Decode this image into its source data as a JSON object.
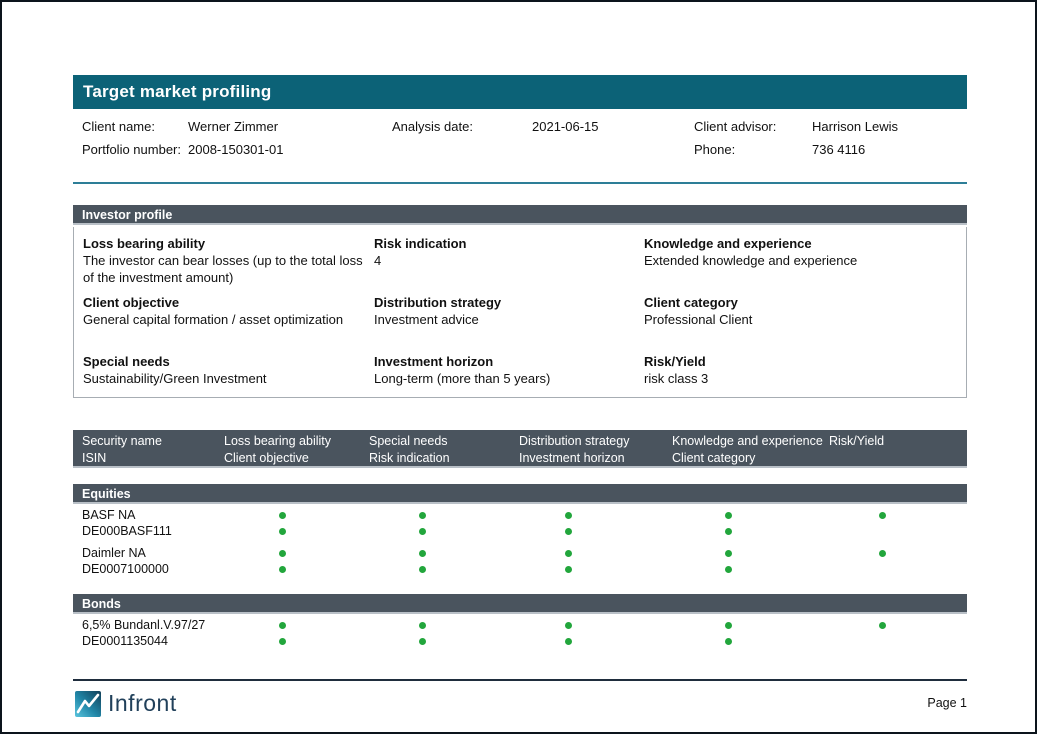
{
  "title": "Target market profiling",
  "client_info": {
    "rows": [
      [
        {
          "label": "Client name:",
          "value": "Werner Zimmer"
        },
        {
          "label": "Analysis date:",
          "value": "2021-06-15"
        },
        {
          "label": "Client advisor:",
          "value": "Harrison Lewis"
        }
      ],
      [
        {
          "label": "Portfolio number:",
          "value": "2008-150301-01"
        },
        {
          "label": "Phone:",
          "value": "736 4116"
        }
      ]
    ]
  },
  "investor_profile": {
    "header": "Investor profile",
    "fields": [
      {
        "label": "Loss bearing ability",
        "value": "The investor can bear losses (up to the total loss of the investment amount)"
      },
      {
        "label": "Risk indication",
        "value": "4"
      },
      {
        "label": "Knowledge and experience",
        "value": "Extended knowledge and experience"
      },
      {
        "label": "Client objective",
        "value": "General capital formation / asset optimization"
      },
      {
        "label": "Distribution strategy",
        "value": "Investment advice"
      },
      {
        "label": "Client category",
        "value": "Professional Client"
      },
      {
        "label": "Special needs",
        "value": "Sustainability/Green Investment"
      },
      {
        "label": "Investment horizon",
        "value": "Long-term (more than 5 years)"
      },
      {
        "label": "Risk/Yield",
        "value": "risk class 3"
      }
    ]
  },
  "table": {
    "columns": [
      {
        "line1": "Security name",
        "line2": "ISIN"
      },
      {
        "line1": "Loss bearing ability",
        "line2": "Client objective"
      },
      {
        "line1": "Special needs",
        "line2": "Risk indication"
      },
      {
        "line1": "Distribution strategy",
        "line2": "Investment horizon"
      },
      {
        "line1": "Knowledge and experience",
        "line2": "Client category"
      },
      {
        "line1": "Risk/Yield",
        "line2": ""
      }
    ],
    "groups": [
      {
        "name": "Equities",
        "rows": [
          {
            "name": "BASF NA",
            "isin": "DE000BASF111",
            "dots": [
              [
                true,
                true,
                true,
                true,
                true
              ],
              [
                true,
                true,
                true,
                true,
                false
              ]
            ]
          },
          {
            "name": "Daimler NA",
            "isin": "DE0007100000",
            "dots": [
              [
                true,
                true,
                true,
                true,
                true
              ],
              [
                true,
                true,
                true,
                true,
                false
              ]
            ]
          }
        ]
      },
      {
        "name": "Bonds",
        "rows": [
          {
            "name": "6,5% Bundanl.V.97/27",
            "isin": "DE0001135044",
            "dots": [
              [
                true,
                true,
                true,
                true,
                true
              ],
              [
                true,
                true,
                true,
                true,
                false
              ]
            ]
          }
        ]
      }
    ]
  },
  "footer": {
    "brand": "Infront",
    "page_label": "Page 1"
  },
  "colors": {
    "accent_teal": "#0c6277",
    "slate_bar": "#4a545e",
    "dot_green": "#22a63c",
    "rule_teal": "#2d7e97",
    "footer_rule": "#1f2d3d"
  }
}
